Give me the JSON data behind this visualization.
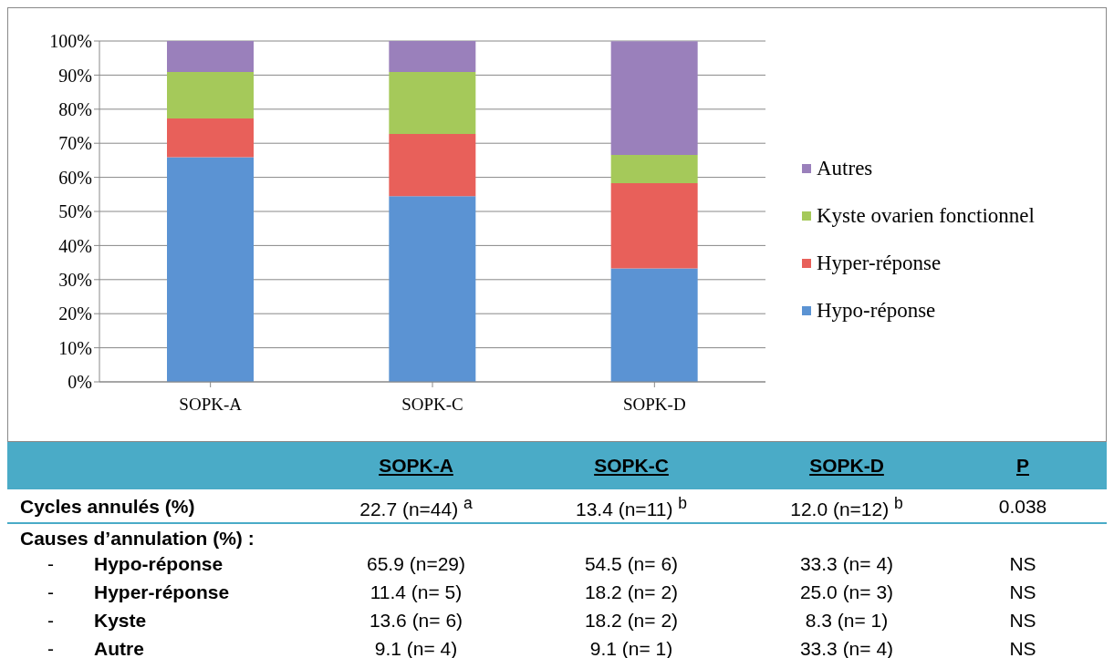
{
  "chart_data": {
    "type": "bar",
    "stacked": true,
    "categories": [
      "SOPK-A",
      "SOPK-C",
      "SOPK-D"
    ],
    "series": [
      {
        "name": "Hypo-réponse",
        "color": "#5b93d3",
        "values": [
          65.9,
          54.5,
          33.3
        ]
      },
      {
        "name": "Hyper-réponse",
        "color": "#e8605a",
        "values": [
          11.4,
          18.2,
          25.0
        ]
      },
      {
        "name": "Kyste ovarien fonctionnel",
        "color": "#a5c95a",
        "values": [
          13.6,
          18.2,
          8.3
        ]
      },
      {
        "name": "Autres",
        "color": "#9a80bb",
        "values": [
          9.1,
          9.1,
          33.3
        ]
      }
    ],
    "ylim": [
      0,
      100
    ],
    "yticks": [
      {
        "value": 0,
        "label": "0%"
      },
      {
        "value": 10,
        "label": "10%"
      },
      {
        "value": 20,
        "label": "20%"
      },
      {
        "value": 30,
        "label": "30%"
      },
      {
        "value": 40,
        "label": "40%"
      },
      {
        "value": 50,
        "label": "50%"
      },
      {
        "value": 60,
        "label": "60%"
      },
      {
        "value": 70,
        "label": "70%"
      },
      {
        "value": 80,
        "label": "80%"
      },
      {
        "value": 90,
        "label": "90%"
      },
      {
        "value": 100,
        "label": "100%"
      }
    ],
    "grid": "y",
    "legend": "right",
    "annotations": [
      "P",
      "Cycles annulés (%)",
      "22.7 (n=44) $^{a}$",
      "13.4 (n=11) $^{b}$",
      "12.0 (n=12) $^{b}$",
      "0.038",
      "Causes d’annulation (%) :",
      "-",
      "-",
      "-",
      "-",
      "Hypo-réponse",
      "Hyper-réponse",
      "Kyste",
      "Autre",
      "NS",
      "NS",
      "NS",
      "NS",
      "65.9 (n=29)",
      "54.5 (n= 6)",
      "33.3 (n= 4)",
      "11.4 (n= 5)",
      "18.2 (n= 2)",
      "25.0 (n= 3)",
      "13.6 (n= 6)",
      "18.2 (n= 2)",
      "8.3 (n= 1)",
      "9.1 (n= 4)",
      "9.1 (n= 1)",
      "33.3 (n= 4)"
    ]
  }
}
